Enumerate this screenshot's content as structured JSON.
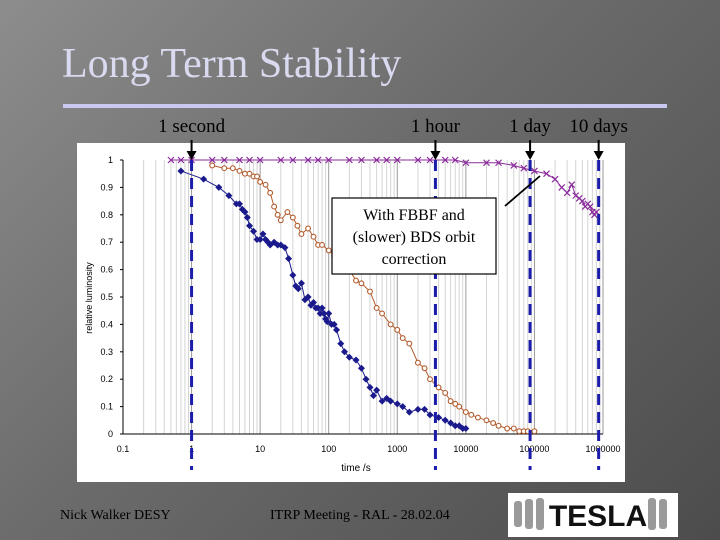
{
  "slide": {
    "title": "Long Term Stability",
    "footer_left": "Nick Walker DESY",
    "footer_center": "ITRP Meeting - RAL - 28.02.04",
    "logo_text": "TESLA"
  },
  "time_markers": [
    {
      "label": "1 second",
      "x": 1
    },
    {
      "label": "1 hour",
      "x": 3600
    },
    {
      "label": "1 day",
      "x": 86400
    },
    {
      "label": "10 days",
      "x": 864000
    }
  ],
  "annotation": {
    "lines": [
      "With FBBF and",
      "(slower) BDS orbit",
      "correction"
    ]
  },
  "colors": {
    "title": "#d9d9ef",
    "series_blue": "#1a1a8c",
    "series_brown": "#b35c2e",
    "series_purple": "#8a2b9b",
    "dashed": "#1c1caa",
    "plot_bg": "#ffffff"
  },
  "chart_data": {
    "type": "scatter",
    "xlabel": "time /s",
    "ylabel": "relative luminosity",
    "xscale": "log",
    "xlim": [
      0.1,
      1000000
    ],
    "ylim": [
      0,
      1
    ],
    "x_ticks": [
      "0.1",
      "1",
      "10",
      "100",
      "1000",
      "10000",
      "100000",
      "1000000"
    ],
    "y_ticks": [
      "0",
      "0.1",
      "0.2",
      "0.3",
      "0.4",
      "0.5",
      "0.6",
      "0.7",
      "0.8",
      "0.9",
      "1"
    ],
    "grid": "vertical log gridlines",
    "series": [
      {
        "marker": "diamond",
        "color": "#1a1a8c",
        "x": [
          0.7,
          1.5,
          2.5,
          3.5,
          4.5,
          5,
          5.5,
          6,
          6.5,
          7,
          8,
          9,
          10,
          11,
          12,
          13,
          14,
          16,
          18,
          20,
          23,
          26,
          30,
          33,
          36,
          40,
          45,
          50,
          55,
          60,
          65,
          70,
          75,
          80,
          85,
          90,
          95,
          100,
          110,
          120,
          130,
          150,
          170,
          200,
          250,
          300,
          350,
          400,
          450,
          500,
          600,
          700,
          800,
          1000,
          1200,
          1500,
          2000,
          2500,
          3000,
          4000,
          5000,
          6000,
          7000,
          8000,
          9000,
          10000
        ],
        "y": [
          0.96,
          0.93,
          0.9,
          0.87,
          0.84,
          0.84,
          0.82,
          0.81,
          0.79,
          0.76,
          0.74,
          0.71,
          0.71,
          0.73,
          0.71,
          0.7,
          0.69,
          0.7,
          0.69,
          0.69,
          0.68,
          0.64,
          0.58,
          0.54,
          0.53,
          0.55,
          0.49,
          0.5,
          0.47,
          0.48,
          0.46,
          0.46,
          0.44,
          0.46,
          0.44,
          0.42,
          0.41,
          0.44,
          0.4,
          0.4,
          0.38,
          0.33,
          0.3,
          0.28,
          0.27,
          0.24,
          0.2,
          0.17,
          0.14,
          0.16,
          0.12,
          0.13,
          0.12,
          0.11,
          0.1,
          0.08,
          0.09,
          0.09,
          0.07,
          0.06,
          0.05,
          0.04,
          0.03,
          0.03,
          0.02,
          0.02
        ]
      },
      {
        "marker": "circle",
        "color": "#b35c2e",
        "x": [
          2,
          3,
          4,
          5,
          6,
          7,
          8,
          9,
          10,
          12,
          14,
          16,
          18,
          20,
          25,
          30,
          35,
          40,
          50,
          60,
          70,
          80,
          100,
          120,
          150,
          200,
          250,
          300,
          400,
          500,
          600,
          800,
          1000,
          1200,
          1500,
          2000,
          2500,
          3000,
          4000,
          5000,
          6000,
          7000,
          8000,
          10000,
          12000,
          15000,
          20000,
          25000,
          30000,
          40000,
          50000,
          60000,
          70000,
          80000,
          100000
        ],
        "y": [
          0.98,
          0.97,
          0.97,
          0.96,
          0.95,
          0.95,
          0.94,
          0.94,
          0.92,
          0.91,
          0.88,
          0.83,
          0.8,
          0.78,
          0.81,
          0.79,
          0.76,
          0.73,
          0.75,
          0.72,
          0.69,
          0.69,
          0.67,
          0.65,
          0.63,
          0.6,
          0.56,
          0.55,
          0.52,
          0.46,
          0.44,
          0.4,
          0.38,
          0.35,
          0.33,
          0.26,
          0.24,
          0.2,
          0.17,
          0.15,
          0.12,
          0.11,
          0.1,
          0.08,
          0.07,
          0.06,
          0.05,
          0.04,
          0.03,
          0.02,
          0.02,
          0.01,
          0.01,
          0.01,
          0.01
        ]
      },
      {
        "marker": "x",
        "color": "#8a2b9b",
        "x": [
          0.5,
          0.7,
          1,
          2,
          3,
          5,
          7,
          10,
          20,
          30,
          50,
          70,
          100,
          200,
          300,
          500,
          700,
          1000,
          2000,
          3000,
          5000,
          7000,
          10000,
          20000,
          30000,
          50000,
          70000,
          100000,
          150000,
          200000,
          250000,
          300000,
          350000,
          400000,
          450000,
          500000,
          550000,
          600000,
          650000,
          700000,
          750000,
          800000
        ],
        "y": [
          1.0,
          1.0,
          1.0,
          1.0,
          1.0,
          1.0,
          1.0,
          1.0,
          1.0,
          1.0,
          1.0,
          1.0,
          1.0,
          1.0,
          1.0,
          1.0,
          1.0,
          1.0,
          1.0,
          1.0,
          1.0,
          1.0,
          0.99,
          0.99,
          0.99,
          0.98,
          0.97,
          0.96,
          0.95,
          0.93,
          0.9,
          0.88,
          0.91,
          0.87,
          0.86,
          0.85,
          0.83,
          0.84,
          0.83,
          0.81,
          0.8,
          0.81
        ]
      }
    ]
  }
}
